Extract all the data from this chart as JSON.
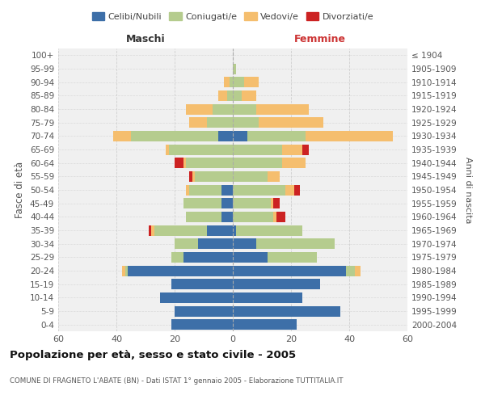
{
  "age_groups": [
    "0-4",
    "5-9",
    "10-14",
    "15-19",
    "20-24",
    "25-29",
    "30-34",
    "35-39",
    "40-44",
    "45-49",
    "50-54",
    "55-59",
    "60-64",
    "65-69",
    "70-74",
    "75-79",
    "80-84",
    "85-89",
    "90-94",
    "95-99",
    "100+"
  ],
  "birth_years": [
    "2000-2004",
    "1995-1999",
    "1990-1994",
    "1985-1989",
    "1980-1984",
    "1975-1979",
    "1970-1974",
    "1965-1969",
    "1960-1964",
    "1955-1959",
    "1950-1954",
    "1945-1949",
    "1940-1944",
    "1935-1939",
    "1930-1934",
    "1925-1929",
    "1920-1924",
    "1915-1919",
    "1910-1914",
    "1905-1909",
    "≤ 1904"
  ],
  "male": {
    "celibi": [
      21,
      20,
      25,
      21,
      36,
      17,
      12,
      9,
      4,
      4,
      4,
      0,
      0,
      0,
      5,
      0,
      0,
      0,
      0,
      0,
      0
    ],
    "coniugati": [
      0,
      0,
      0,
      0,
      1,
      4,
      8,
      18,
      12,
      13,
      11,
      13,
      16,
      22,
      30,
      9,
      7,
      2,
      1,
      0,
      0
    ],
    "vedovi": [
      0,
      0,
      0,
      0,
      1,
      0,
      0,
      1,
      0,
      0,
      1,
      1,
      1,
      1,
      6,
      6,
      9,
      3,
      2,
      0,
      0
    ],
    "divorziati": [
      0,
      0,
      0,
      0,
      0,
      0,
      0,
      1,
      0,
      0,
      0,
      1,
      3,
      0,
      0,
      0,
      0,
      0,
      0,
      0,
      0
    ]
  },
  "female": {
    "nubili": [
      22,
      37,
      24,
      30,
      39,
      12,
      8,
      1,
      0,
      0,
      0,
      0,
      0,
      0,
      5,
      0,
      0,
      0,
      0,
      0,
      0
    ],
    "coniugate": [
      0,
      0,
      0,
      0,
      3,
      17,
      27,
      23,
      14,
      13,
      18,
      12,
      17,
      17,
      20,
      9,
      8,
      3,
      4,
      1,
      0
    ],
    "vedove": [
      0,
      0,
      0,
      0,
      2,
      0,
      0,
      0,
      1,
      1,
      3,
      4,
      8,
      7,
      30,
      22,
      18,
      5,
      5,
      0,
      0
    ],
    "divorziate": [
      0,
      0,
      0,
      0,
      0,
      0,
      0,
      0,
      3,
      2,
      2,
      0,
      0,
      2,
      0,
      0,
      0,
      0,
      0,
      0,
      0
    ]
  },
  "colors": {
    "celibi_nubili": "#3d6fa8",
    "coniugati": "#b5cc8e",
    "vedovi": "#f5be6e",
    "divorziati": "#cc2222"
  },
  "xlim": 60,
  "title": "Popolazione per età, sesso e stato civile - 2005",
  "subtitle": "COMUNE DI FRAGNETO L'ABATE (BN) - Dati ISTAT 1° gennaio 2005 - Elaborazione TUTTITALIA.IT",
  "xlabel_left": "Maschi",
  "xlabel_right": "Femmine",
  "ylabel_left": "Fasce di età",
  "ylabel_right": "Anni di nascita",
  "bg_color": "#f0f0f0",
  "grid_color": "#cccccc"
}
